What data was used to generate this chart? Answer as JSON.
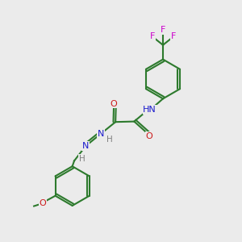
{
  "background_color": "#ebebeb",
  "bond_color": "#2d7a2d",
  "atom_colors": {
    "H": "#808080",
    "N": "#1a1acc",
    "O": "#cc1a1a",
    "F": "#cc00cc"
  },
  "figsize": [
    3.0,
    3.0
  ],
  "dpi": 100
}
